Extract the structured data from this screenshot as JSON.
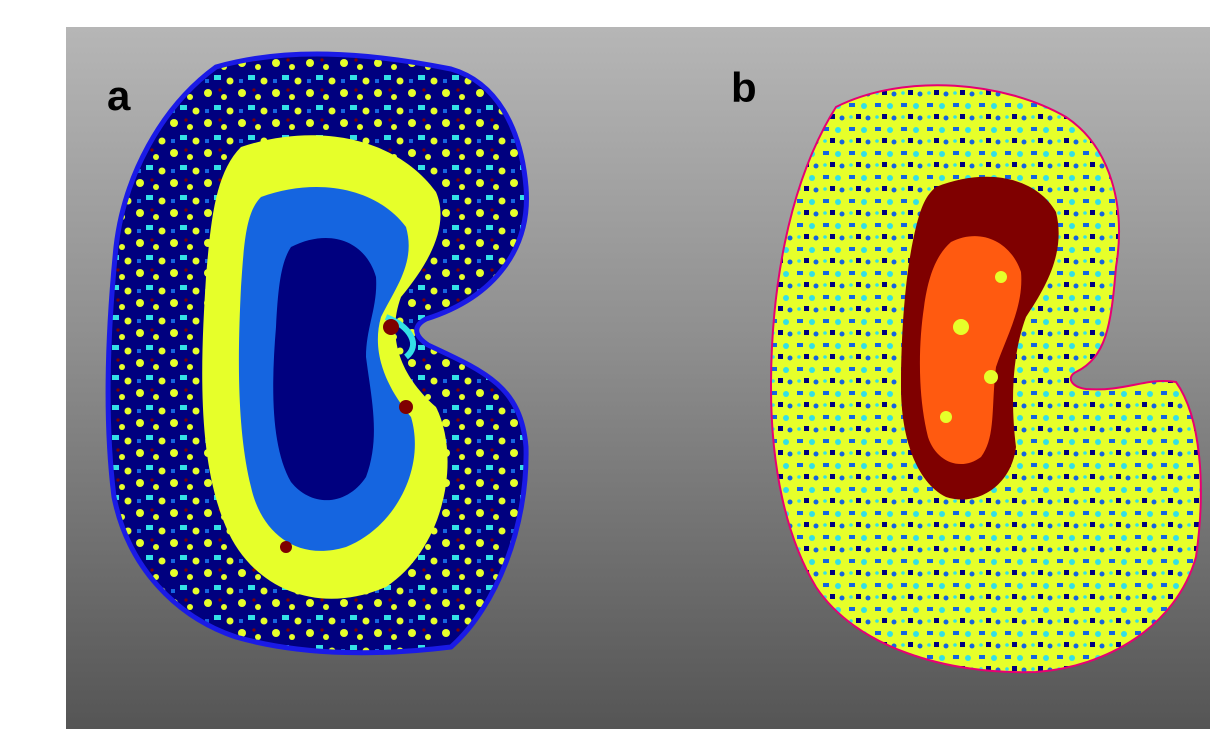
{
  "panels": [
    {
      "label": "a"
    },
    {
      "label": "b"
    }
  ],
  "colors": {
    "background_top": "#b6b6b6",
    "background_bottom": "#555555",
    "panel_a_outline": "#1a1ae6",
    "navy": "#00007f",
    "blue": "#1565e0",
    "cyan": "#33e0e6",
    "yellow": "#e6ff2a",
    "orange": "#ff5a10",
    "dark_red": "#7f0000"
  }
}
